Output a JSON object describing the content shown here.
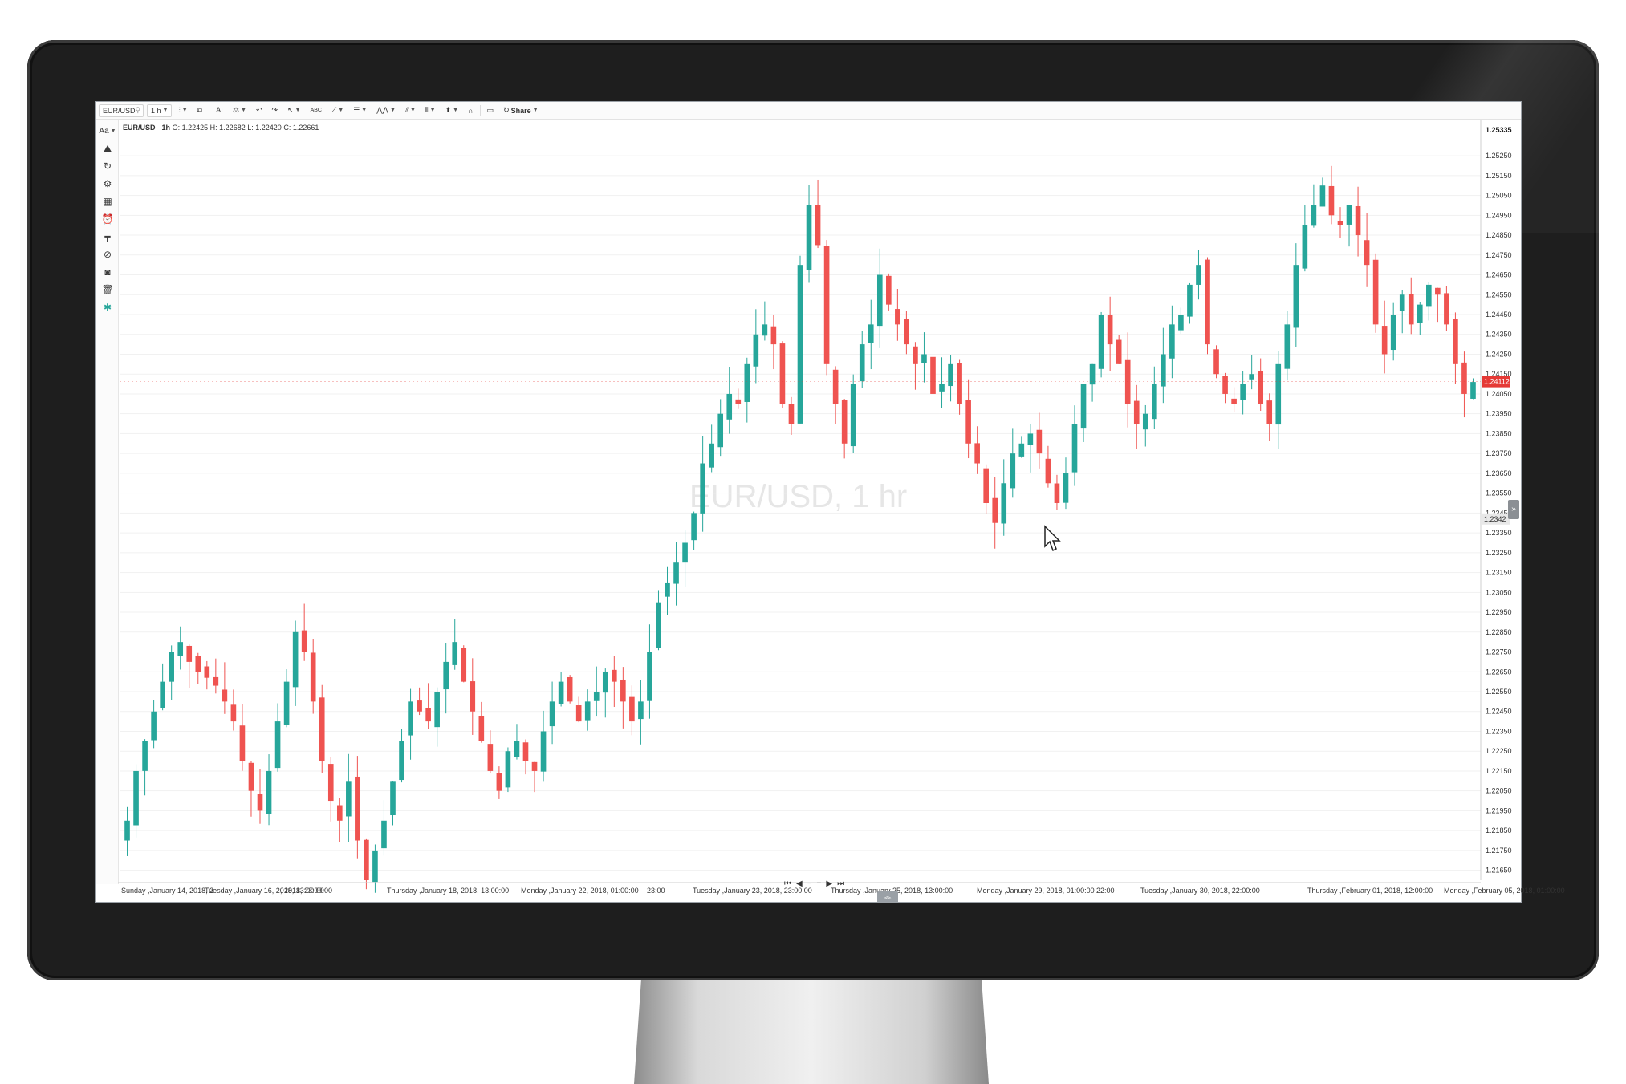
{
  "toolbar": {
    "symbol": "EUR/USD",
    "interval": "1 h",
    "share_label": "Share"
  },
  "legend": {
    "symbol": "EUR/USD",
    "interval": "1h",
    "o_label": "O:",
    "o": "1.22425",
    "h_label": "H:",
    "h": "1.22682",
    "l_label": "L:",
    "l": "1.22420",
    "c_label": "C:",
    "c": "1.22661"
  },
  "watermark": "EUR/USD, 1 hr",
  "price_axis": {
    "top_label": "1.25335",
    "current_price": "1.24112",
    "crosshair_label": "1.2342"
  },
  "time_axis": {
    "labels": [
      "Sunday ,January 14, 2018, 2",
      "Tuesday ,January 16, 2018, 13:00:00",
      ", 2018, 23:00:00",
      "Thursday ,January 18, 2018, 13:00:00",
      "Monday ,January 22, 2018, 01:00:00",
      "23:00",
      "Tuesday ,January 23, 2018, 23:00:00",
      "Thursday ,January 25, 2018, 13:00:00",
      "Monday ,January 29, 2018, 01:00:00",
      "22:00",
      "Tuesday ,January 30, 2018, 22:00:00",
      "Thursday ,February 01, 2018, 12:00:00",
      "Monday ,February 05, 2018, 01:00:00"
    ]
  },
  "nav": {
    "first": "⏮",
    "prev": "◀",
    "zoom_out": "−",
    "zoom_in": "+",
    "next": "▶",
    "last": "⏭"
  },
  "icons": {
    "font": "Aa",
    "indicators": "chart-indicators-icon",
    "refresh": "refresh-icon",
    "settings": "gear-icon",
    "data": "database-icon",
    "alarm": "alarm-icon",
    "measure": "ruler-icon",
    "hide": "eye-off-icon",
    "camera": "camera-icon",
    "trash": "trash-icon",
    "bug": "bug-icon"
  },
  "colors": {
    "up": "#26a69a",
    "down": "#ef5350",
    "current_price_bg": "#e53935"
  },
  "chart_data": {
    "type": "candlestick",
    "title": "EUR/USD, 1 hr",
    "ylim": [
      1.216,
      1.254
    ],
    "y_ticks": [
      "1.25250",
      "1.25150",
      "1.25050",
      "1.24950",
      "1.24850",
      "1.24750",
      "1.24650",
      "1.24550",
      "1.24450",
      "1.24350",
      "1.24250",
      "1.24150",
      "1.24050",
      "1.23950",
      "1.23850",
      "1.23750",
      "1.23650",
      "1.23550",
      "1.23450",
      "1.23350",
      "1.23250",
      "1.23150",
      "1.23050",
      "1.22950",
      "1.22850",
      "1.22750",
      "1.22650",
      "1.22550",
      "1.22450",
      "1.22350",
      "1.22250",
      "1.22150",
      "1.22050",
      "1.21950",
      "1.21850",
      "1.21750",
      "1.21650"
    ],
    "closes": [
      1.219,
      1.2215,
      1.223,
      1.2245,
      1.226,
      1.2275,
      1.228,
      1.227,
      1.2265,
      1.2262,
      1.2258,
      1.225,
      1.224,
      1.222,
      1.2205,
      1.2195,
      1.2215,
      1.224,
      1.226,
      1.2285,
      1.2275,
      1.225,
      1.222,
      1.22,
      1.219,
      1.221,
      1.218,
      1.216,
      1.2175,
      1.219,
      1.221,
      1.223,
      1.225,
      1.2245,
      1.224,
      1.2255,
      1.227,
      1.228,
      1.226,
      1.2245,
      1.223,
      1.2215,
      1.2205,
      1.2225,
      1.223,
      1.222,
      1.2215,
      1.2235,
      1.225,
      1.226,
      1.225,
      1.224,
      1.225,
      1.2255,
      1.2265,
      1.226,
      1.225,
      1.224,
      1.225,
      1.2275,
      1.23,
      1.231,
      1.232,
      1.233,
      1.2345,
      1.237,
      1.238,
      1.2395,
      1.2405,
      1.24,
      1.242,
      1.2435,
      1.244,
      1.243,
      1.24,
      1.239,
      1.247,
      1.25,
      1.248,
      1.242,
      1.24,
      1.238,
      1.241,
      1.243,
      1.244,
      1.2465,
      1.245,
      1.244,
      1.243,
      1.242,
      1.2425,
      1.2405,
      1.241,
      1.242,
      1.24,
      1.238,
      1.237,
      1.235,
      1.234,
      1.236,
      1.2375,
      1.238,
      1.2385,
      1.2375,
      1.236,
      1.235,
      1.2365,
      1.239,
      1.241,
      1.242,
      1.2445,
      1.243,
      1.242,
      1.24,
      1.239,
      1.2395,
      1.241,
      1.2425,
      1.244,
      1.2445,
      1.246,
      1.247,
      1.243,
      1.2415,
      1.2405,
      1.24,
      1.241,
      1.2415,
      1.24,
      1.239,
      1.242,
      1.244,
      1.247,
      1.249,
      1.25,
      1.251,
      1.2495,
      1.249,
      1.25,
      1.2485,
      1.247,
      1.244,
      1.2425,
      1.2445,
      1.2455,
      1.244,
      1.245,
      1.246,
      1.2455,
      1.244,
      1.242,
      1.2405,
      1.2411
    ]
  }
}
